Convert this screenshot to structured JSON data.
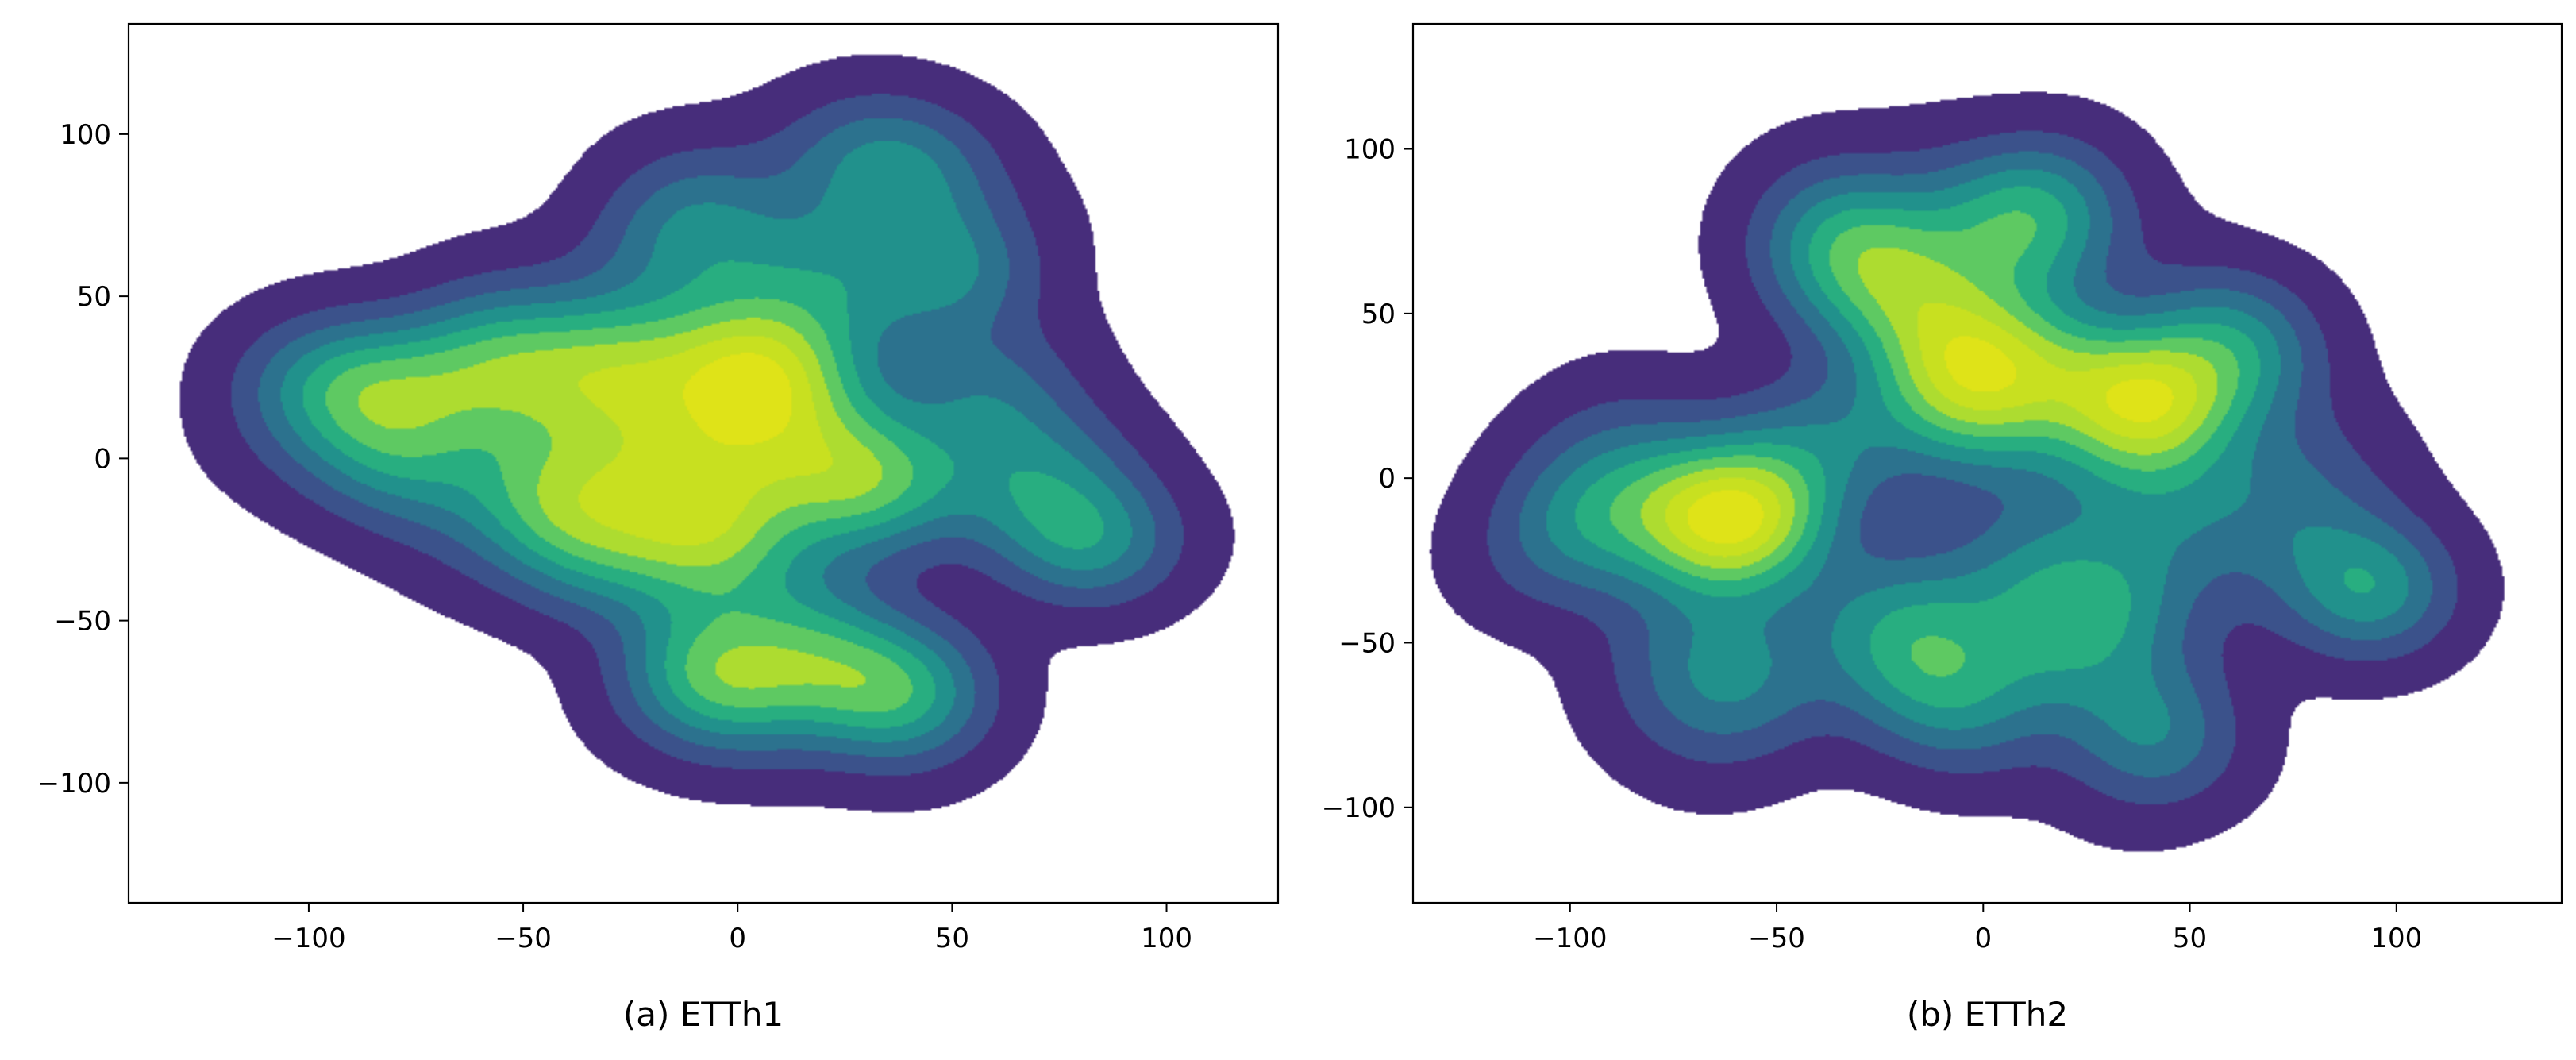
{
  "chart_data": [
    {
      "type": "contour",
      "caption": "(a) ETTh1",
      "xlim": [
        -142,
        126
      ],
      "ylim": [
        -137,
        134
      ],
      "xticks": [
        -100,
        -50,
        0,
        50,
        100
      ],
      "yticks": [
        -100,
        -50,
        0,
        50,
        100
      ],
      "xtick_labels": [
        "−100",
        "−50",
        "0",
        "50",
        "100"
      ],
      "ytick_labels": [
        "−100",
        "−50",
        "0",
        "50",
        "100"
      ],
      "grid": false,
      "colormap": "viridis",
      "levels": 9,
      "seed": 11,
      "kernel_bandwidth": 13,
      "density_threshold": 0.03,
      "blobs": [
        [
          -20,
          5,
          40,
          1.0
        ],
        [
          5,
          25,
          18,
          0.55
        ],
        [
          28,
          -5,
          14,
          0.45
        ],
        [
          -10,
          -25,
          24,
          0.55
        ],
        [
          -85,
          10,
          22,
          0.45
        ],
        [
          -60,
          30,
          18,
          0.35
        ],
        [
          -30,
          30,
          20,
          0.35
        ],
        [
          20,
          60,
          22,
          0.35
        ],
        [
          35,
          90,
          16,
          0.3
        ],
        [
          35,
          -70,
          14,
          0.4
        ],
        [
          -5,
          -70,
          14,
          0.35
        ],
        [
          60,
          20,
          16,
          0.2
        ],
        [
          70,
          -10,
          18,
          0.3
        ],
        [
          85,
          -25,
          12,
          0.2
        ],
        [
          15,
          -60,
          20,
          0.3
        ],
        [
          -45,
          -20,
          16,
          0.3
        ],
        [
          50,
          60,
          14,
          0.2
        ],
        [
          -10,
          70,
          18,
          0.25
        ],
        [
          -95,
          25,
          14,
          0.2
        ]
      ]
    },
    {
      "type": "contour",
      "caption": "(b) ETTh2",
      "xlim": [
        -138,
        140
      ],
      "ylim": [
        -129,
        138
      ],
      "xticks": [
        -100,
        -50,
        0,
        50,
        100
      ],
      "yticks": [
        -100,
        -50,
        0,
        50,
        100
      ],
      "xtick_labels": [
        "−100",
        "−50",
        "0",
        "50",
        "100"
      ],
      "ytick_labels": [
        "−100",
        "−50",
        "0",
        "50",
        "100"
      ],
      "grid": false,
      "colormap": "viridis",
      "levels": 9,
      "seed": 29,
      "kernel_bandwidth": 13,
      "density_threshold": 0.03,
      "blobs": [
        [
          0,
          30,
          22,
          0.95
        ],
        [
          20,
          -40,
          28,
          0.85
        ],
        [
          -60,
          -15,
          14,
          0.7
        ],
        [
          40,
          25,
          14,
          0.55
        ],
        [
          -30,
          70,
          20,
          0.55
        ],
        [
          10,
          80,
          18,
          0.5
        ],
        [
          -60,
          -60,
          22,
          0.45
        ],
        [
          -85,
          0,
          18,
          0.35
        ],
        [
          -100,
          -20,
          14,
          0.25
        ],
        [
          60,
          40,
          18,
          0.35
        ],
        [
          70,
          -10,
          20,
          0.35
        ],
        [
          -20,
          -45,
          18,
          0.35
        ],
        [
          -40,
          10,
          16,
          0.25
        ],
        [
          40,
          -80,
          14,
          0.25
        ],
        [
          92,
          -35,
          10,
          0.3
        ],
        [
          -5,
          -70,
          16,
          0.25
        ],
        [
          40,
          0,
          16,
          0.2
        ],
        [
          -15,
          50,
          18,
          0.3
        ]
      ]
    }
  ]
}
